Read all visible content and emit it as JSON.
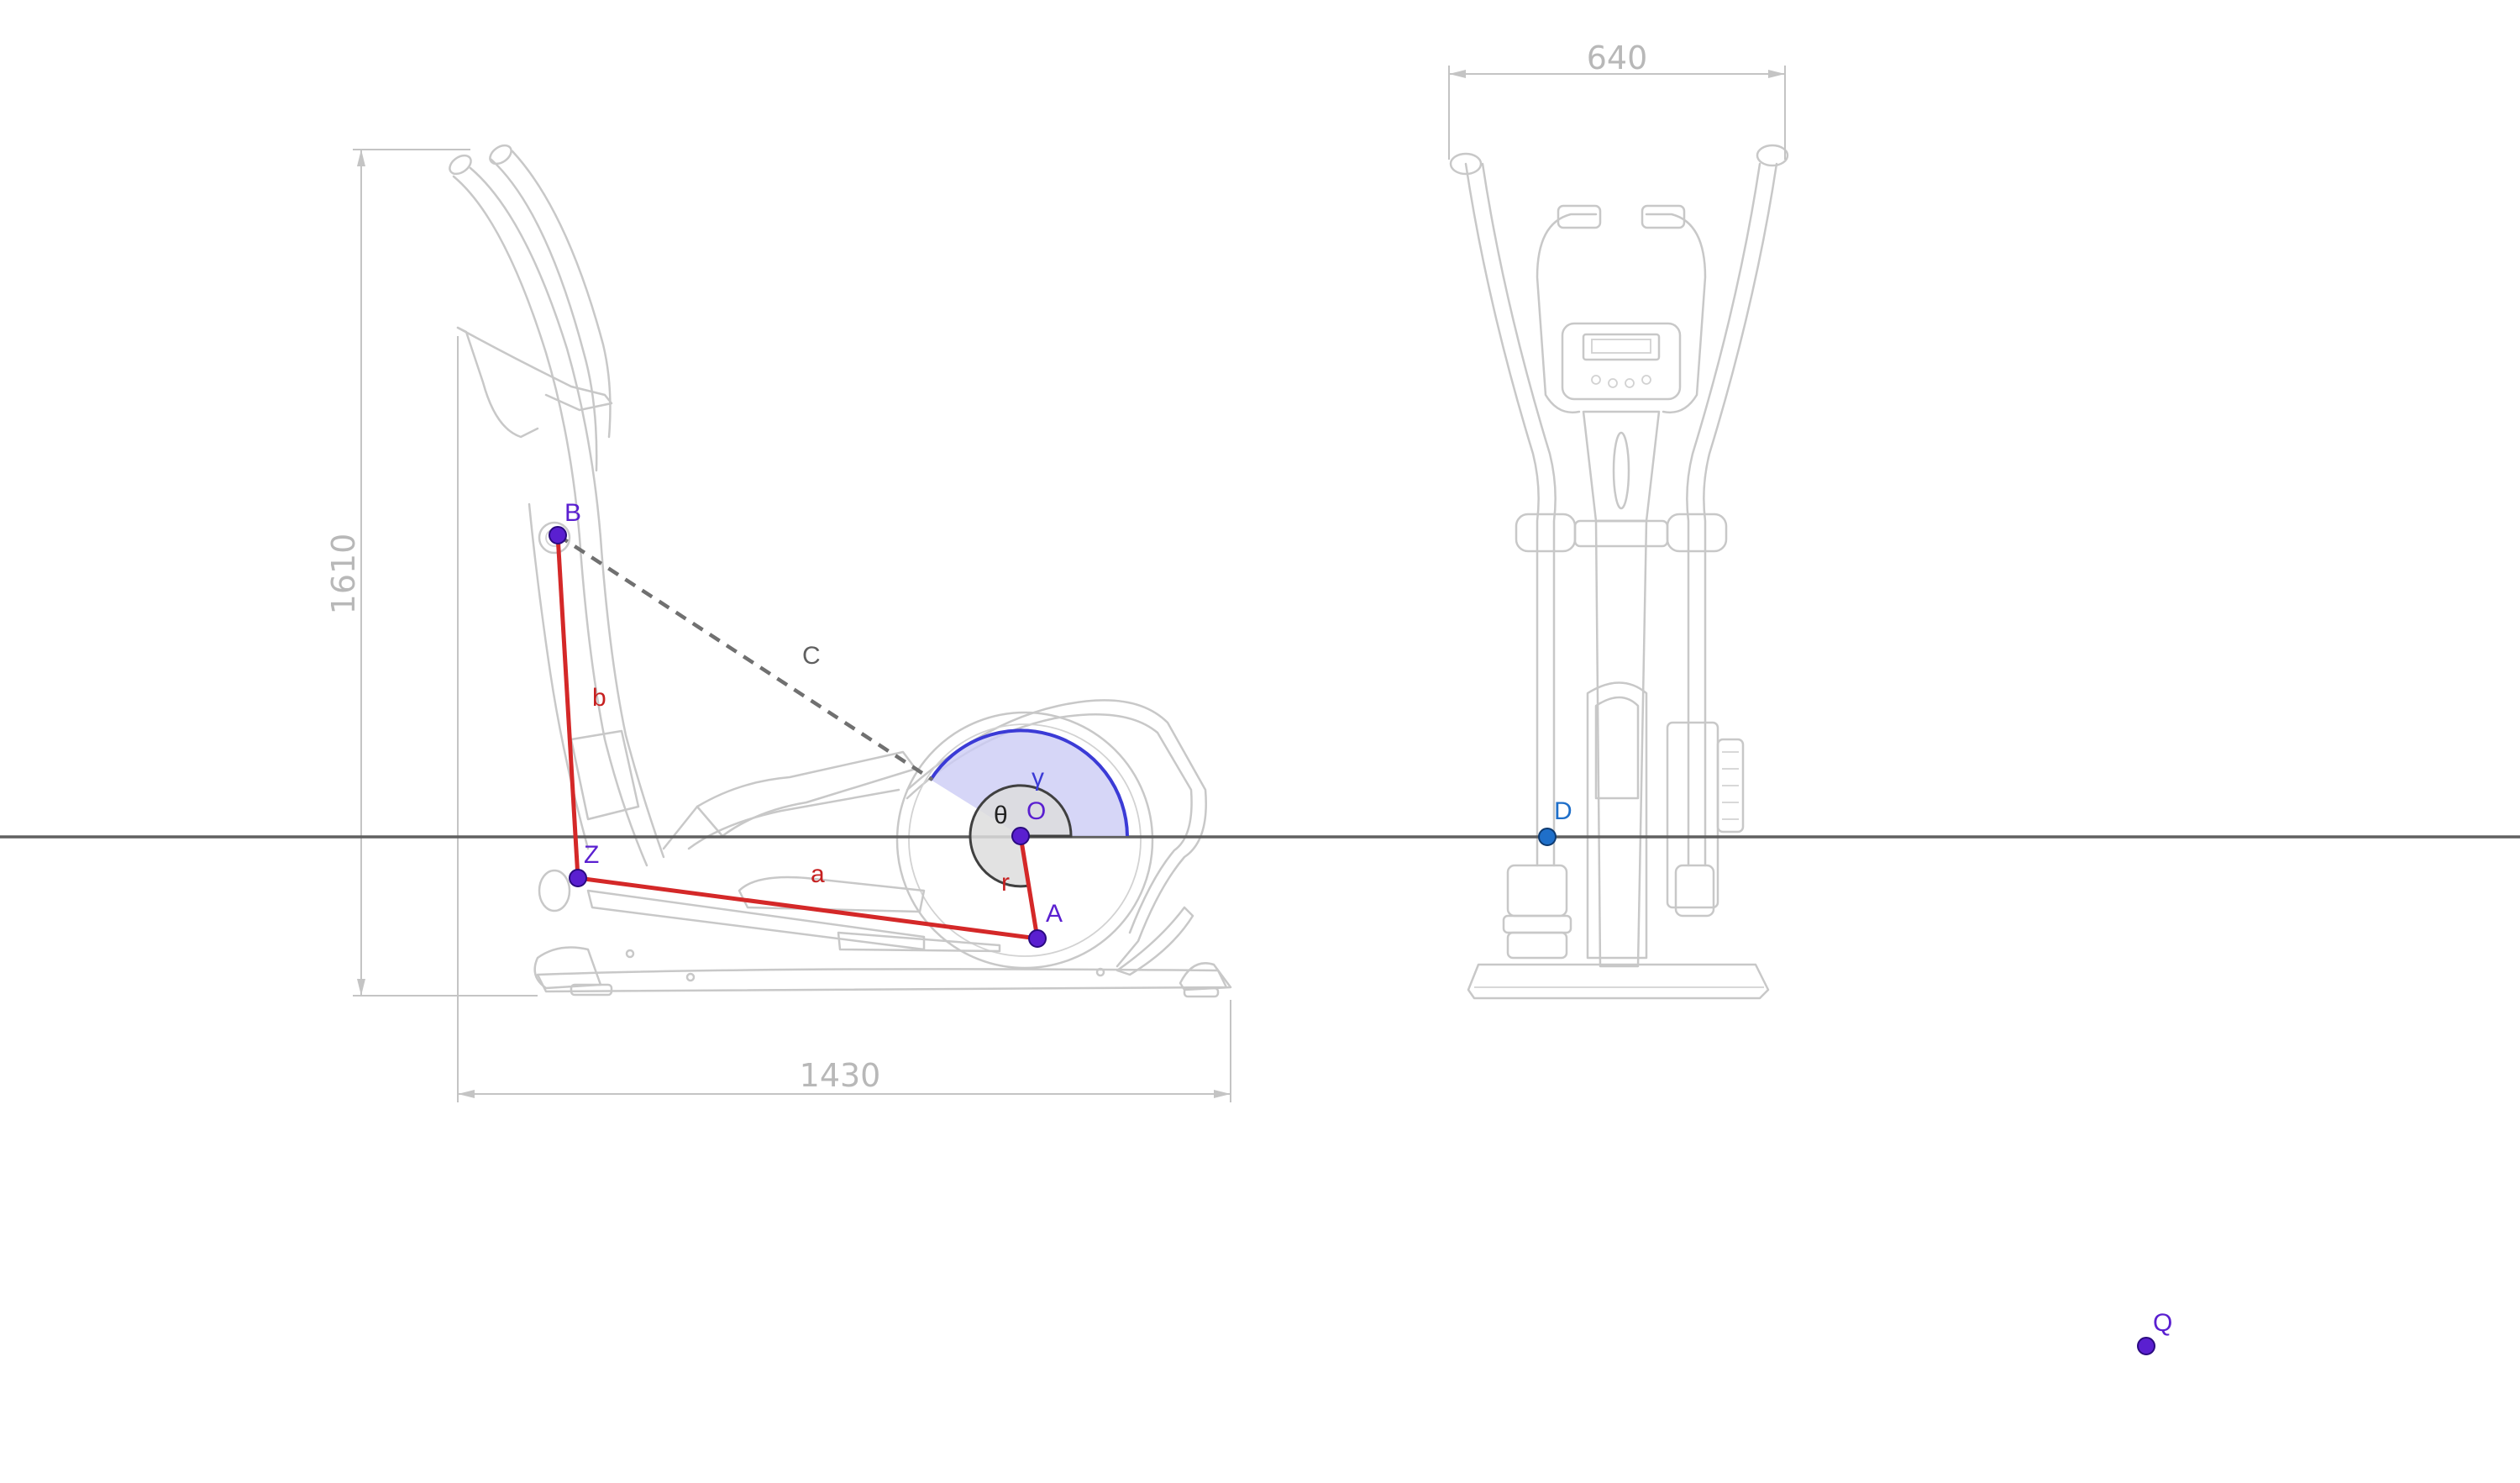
{
  "dimensions": {
    "front_width": "640",
    "side_height": "1610",
    "side_length": "1430"
  },
  "points": {
    "B": "B",
    "Z": "Z",
    "O": "O",
    "A": "A",
    "D": "D",
    "Q": "Q"
  },
  "segments": {
    "a": "a",
    "b": "b",
    "r": "r",
    "C": "C"
  },
  "angles": {
    "theta": "θ",
    "gamma": "γ"
  },
  "colors": {
    "point_purple": "#5a1fd0",
    "point_blue": "#1f6fc9",
    "linkage_red": "#d42828",
    "label_red": "#c62020",
    "sector_fill": "#ccccf5",
    "sector_stroke": "#3b3bd6",
    "axis_line": "#606060",
    "dashed_line": "#707070",
    "sketch_gray": "#c8c8c8"
  }
}
